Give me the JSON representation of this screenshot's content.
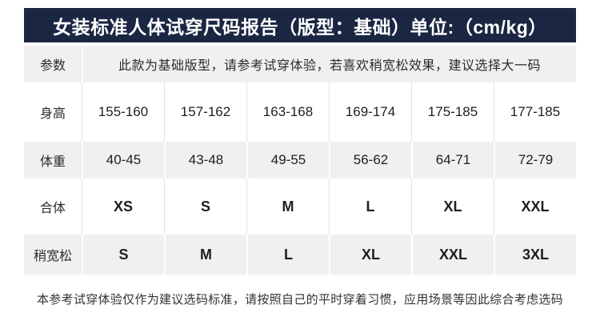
{
  "header": {
    "title": "女装标准人体试穿尺码报告（版型：基础）单位:（cm/kg）"
  },
  "colors": {
    "header_bg": "#1a2642",
    "header_text": "#ffffff",
    "stripe_bg": "#f0f0f0",
    "divider": "#e3e3e3",
    "body_text": "#262626"
  },
  "table": {
    "rows": [
      {
        "label": "参数",
        "note": "此款为基础版型，请参考试穿体验，若喜欢稍宽松效果，建议选择大一码"
      },
      {
        "label": "身高",
        "values": [
          "155-160",
          "157-162",
          "163-168",
          "169-174",
          "175-185",
          "177-185"
        ]
      },
      {
        "label": "体重",
        "values": [
          "40-45",
          "43-48",
          "49-55",
          "56-62",
          "64-71",
          "72-79"
        ]
      },
      {
        "label": "合体",
        "values": [
          "XS",
          "S",
          "M",
          "L",
          "XL",
          "XXL"
        ]
      },
      {
        "label": "稍宽松",
        "values": [
          "S",
          "M",
          "L",
          "XL",
          "XXL",
          "3XL"
        ]
      }
    ]
  },
  "footer": {
    "note": "本参考试穿体验仅作为建议选码标准，请按照自己的平时穿着习惯，应用场景等因此综合考虑选码"
  }
}
